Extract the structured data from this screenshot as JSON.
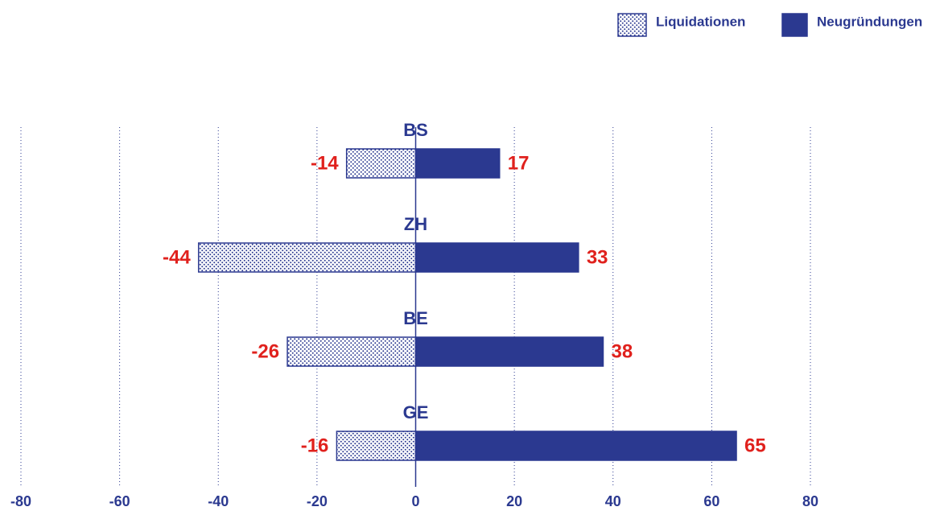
{
  "chart_data": {
    "type": "diverging-bar",
    "categories": [
      "BS",
      "ZH",
      "BE",
      "GE"
    ],
    "series": [
      {
        "name": "Liquidationen",
        "color": "#2b3990",
        "values": [
          -14,
          -44,
          -26,
          -16
        ]
      },
      {
        "name": "Neugründungen",
        "color": "#2b3990",
        "values": [
          17,
          33,
          38,
          65
        ]
      }
    ],
    "xlim": [
      -80,
      80
    ],
    "xticks": [
      -80,
      -60,
      -40,
      -20,
      0,
      20,
      40,
      60,
      80
    ],
    "grid": true,
    "legend": "top-right"
  }
}
